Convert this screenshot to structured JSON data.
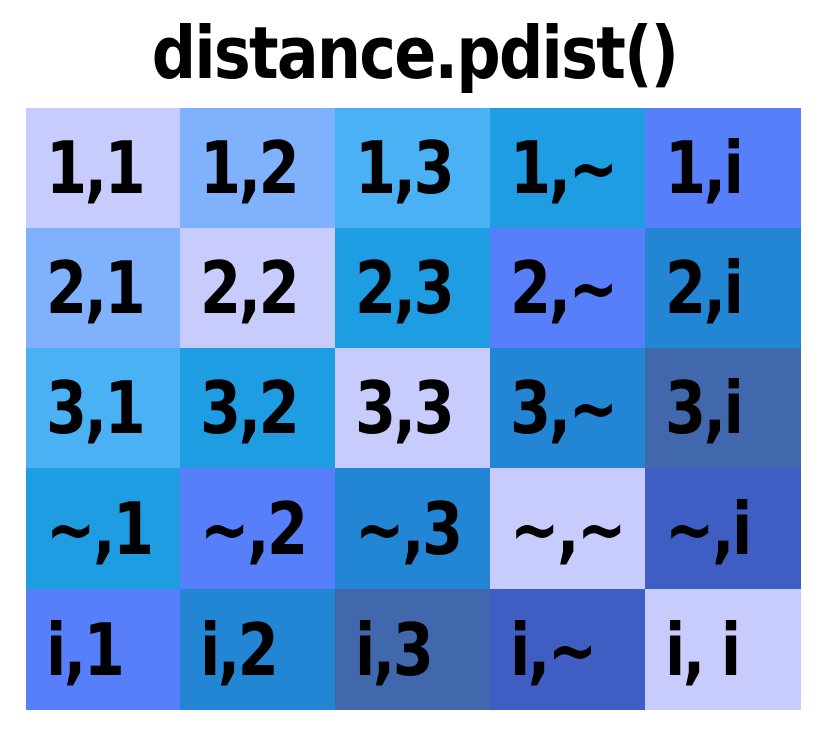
{
  "title": "distance.pdist()",
  "colors": {
    "c0": "#c8ccfd",
    "c1": "#7fb1fd",
    "c2": "#4ab2f4",
    "c3": "#1f9de3",
    "c4": "#577ffa",
    "c5": "#2386d4",
    "c6": "#4167ac",
    "c7": "#3e5ec3"
  },
  "matrix": {
    "rows": [
      [
        {
          "label": "1,1",
          "color": "#c8ccfd"
        },
        {
          "label": "1,2",
          "color": "#7fb1fd"
        },
        {
          "label": "1,3",
          "color": "#4ab2f4"
        },
        {
          "label": "1,~",
          "color": "#1f9de3"
        },
        {
          "label": "1,i",
          "color": "#577ffa"
        }
      ],
      [
        {
          "label": "2,1",
          "color": "#7fb1fd"
        },
        {
          "label": "2,2",
          "color": "#c8ccfd"
        },
        {
          "label": "2,3",
          "color": "#1f9de3"
        },
        {
          "label": "2,~",
          "color": "#577ffa"
        },
        {
          "label": "2,i",
          "color": "#2386d4"
        }
      ],
      [
        {
          "label": "3,1",
          "color": "#4ab2f4"
        },
        {
          "label": "3,2",
          "color": "#1f9de3"
        },
        {
          "label": "3,3",
          "color": "#c8ccfd"
        },
        {
          "label": "3,~",
          "color": "#2386d4"
        },
        {
          "label": "3,i",
          "color": "#4167ac"
        }
      ],
      [
        {
          "label": "~,1",
          "color": "#1f9de3"
        },
        {
          "label": "~,2",
          "color": "#577ffa"
        },
        {
          "label": "~,3",
          "color": "#2386d4"
        },
        {
          "label": "~,~",
          "color": "#c8ccfd"
        },
        {
          "label": "~,i",
          "color": "#3e5ec3"
        }
      ],
      [
        {
          "label": "i,1",
          "color": "#577ffa"
        },
        {
          "label": "i,2",
          "color": "#2386d4"
        },
        {
          "label": "i,3",
          "color": "#4167ac"
        },
        {
          "label": "i,~",
          "color": "#3e5ec3"
        },
        {
          "label": "i, i",
          "color": "#c8ccfd"
        }
      ]
    ]
  }
}
